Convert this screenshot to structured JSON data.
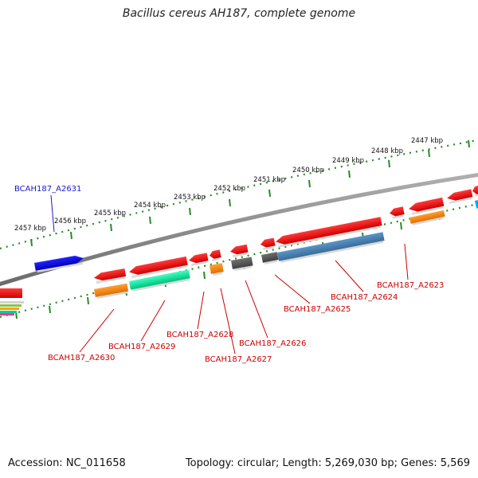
{
  "title": "Bacillus cereus AH187, complete genome",
  "footer": {
    "accession": "Accession: NC_011658",
    "stats": "Topology: circular; Length: 5,269,030 bp; Genes: 5,569"
  },
  "scale_labels": [
    "2457 kbp",
    "2456 kbp",
    "2455 kbp",
    "2454 kbp",
    "2453 kbp",
    "2452 kbp",
    "2451 kbp",
    "2450 kbp",
    "2449 kbp",
    "2448 kbp",
    "2447 kbp"
  ],
  "gene_labels": [
    {
      "name": "BCAH187_A2631",
      "color": "#1a1acc"
    },
    {
      "name": "BCAH187_A2630",
      "color": "#cc0000"
    },
    {
      "name": "BCAH187_A2629",
      "color": "#cc0000"
    },
    {
      "name": "BCAH187_A2628",
      "color": "#cc0000"
    },
    {
      "name": "BCAH187_A2627",
      "color": "#cc0000"
    },
    {
      "name": "BCAH187_A2626",
      "color": "#cc0000"
    },
    {
      "name": "BCAH187_A2625",
      "color": "#cc0000"
    },
    {
      "name": "BCAH187_A2624",
      "color": "#cc0000"
    },
    {
      "name": "BCAH187_A2623",
      "color": "#cc0000"
    }
  ],
  "colors": {
    "backbone": "#7f7f7f",
    "tick": "#2a8a2a",
    "gene_red": "#ee0000",
    "gene_blue": "#0000ee",
    "gene_orange": "#ff8c00",
    "gene_green": "#00e69a",
    "gene_steelblue": "#4682b4",
    "gene_gray": "#5a5a5a",
    "label_red": "#cc0000",
    "label_blue": "#1a1acc"
  }
}
